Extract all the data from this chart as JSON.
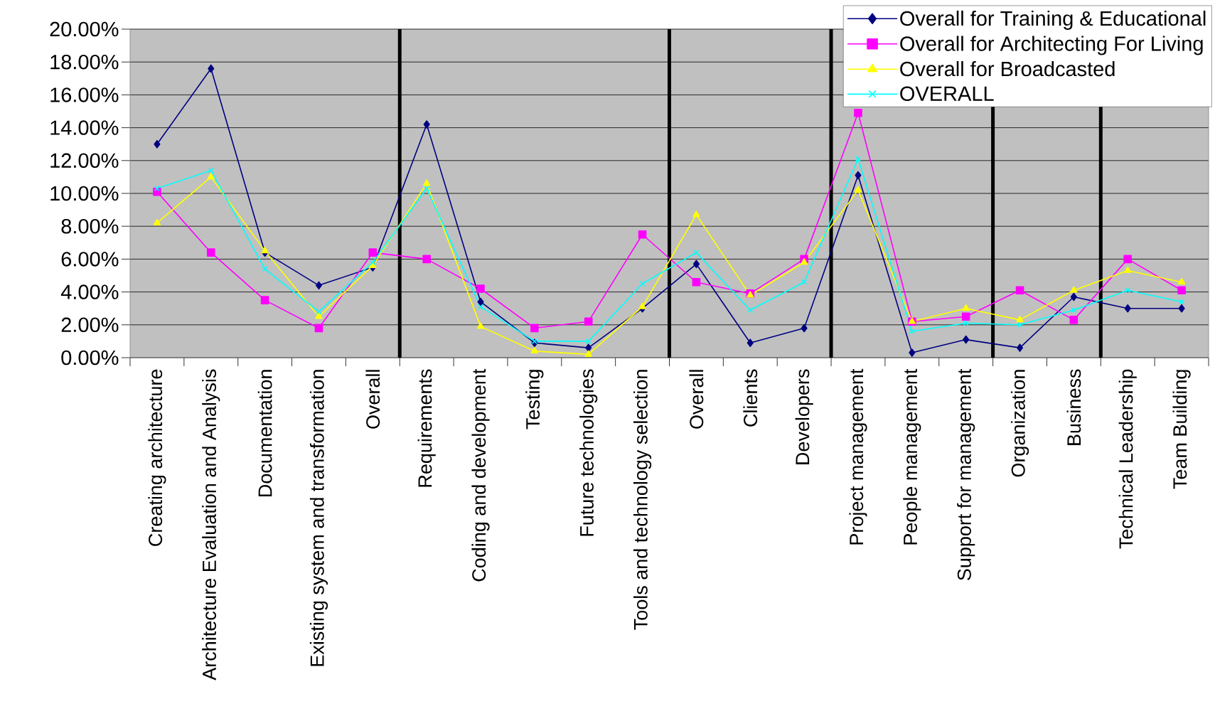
{
  "chart_data": {
    "type": "line",
    "categories": [
      "Creating architecture",
      "Architecture Evaluation and Analysis",
      "Documentation",
      "Existing system and transformation",
      "Overall",
      "Requirements",
      "Coding and development",
      "Testing",
      "Future technologies",
      "Tools and technology selection",
      "Overall",
      "Clients",
      "Developers",
      "Project management",
      "People management",
      "Support for management",
      "Organization",
      "Business",
      "Technical Leadership",
      "Team Building"
    ],
    "series": [
      {
        "name": "Overall for Training & Educational",
        "color": "#000080",
        "marker": "diamond",
        "values": [
          13.0,
          17.6,
          6.4,
          4.4,
          5.5,
          14.2,
          3.4,
          0.9,
          0.6,
          3.0,
          5.7,
          0.9,
          1.8,
          11.1,
          0.3,
          1.1,
          0.6,
          3.7,
          3.0,
          3.0
        ]
      },
      {
        "name": "Overall for Architecting For Living",
        "color": "#ff00ff",
        "marker": "square",
        "values": [
          10.1,
          6.4,
          3.5,
          1.8,
          6.4,
          6.0,
          4.2,
          1.8,
          2.2,
          7.5,
          4.6,
          3.9,
          6.0,
          14.9,
          2.2,
          2.5,
          4.1,
          2.3,
          6.0,
          4.1
        ]
      },
      {
        "name": "Overall for Broadcasted",
        "color": "#ffff00",
        "marker": "triangle",
        "values": [
          8.2,
          11.0,
          6.5,
          2.5,
          5.6,
          10.6,
          1.9,
          0.4,
          0.2,
          3.1,
          8.7,
          3.8,
          5.8,
          10.2,
          2.2,
          3.0,
          2.3,
          4.1,
          5.3,
          4.6
        ]
      },
      {
        "name": "OVERALL",
        "color": "#00ffff",
        "marker": "cross",
        "values": [
          10.3,
          11.4,
          5.4,
          2.8,
          5.8,
          10.3,
          3.1,
          1.0,
          1.0,
          4.5,
          6.4,
          2.9,
          4.6,
          12.1,
          1.6,
          2.1,
          2.0,
          2.9,
          4.1,
          3.4
        ]
      }
    ],
    "ylim": [
      0,
      20
    ],
    "yticks": [
      {
        "value": 0,
        "label": "0.00%"
      },
      {
        "value": 2,
        "label": "2.00%"
      },
      {
        "value": 4,
        "label": "4.00%"
      },
      {
        "value": 6,
        "label": "6.00%"
      },
      {
        "value": 8,
        "label": "8.00%"
      },
      {
        "value": 10,
        "label": "10.00%"
      },
      {
        "value": 12,
        "label": "12.00%"
      },
      {
        "value": 14,
        "label": "14.00%"
      },
      {
        "value": 16,
        "label": "16.00%"
      },
      {
        "value": 18,
        "label": "18.00%"
      },
      {
        "value": 20,
        "label": "20.00%"
      }
    ],
    "grid": "y",
    "legend": "top right"
  }
}
